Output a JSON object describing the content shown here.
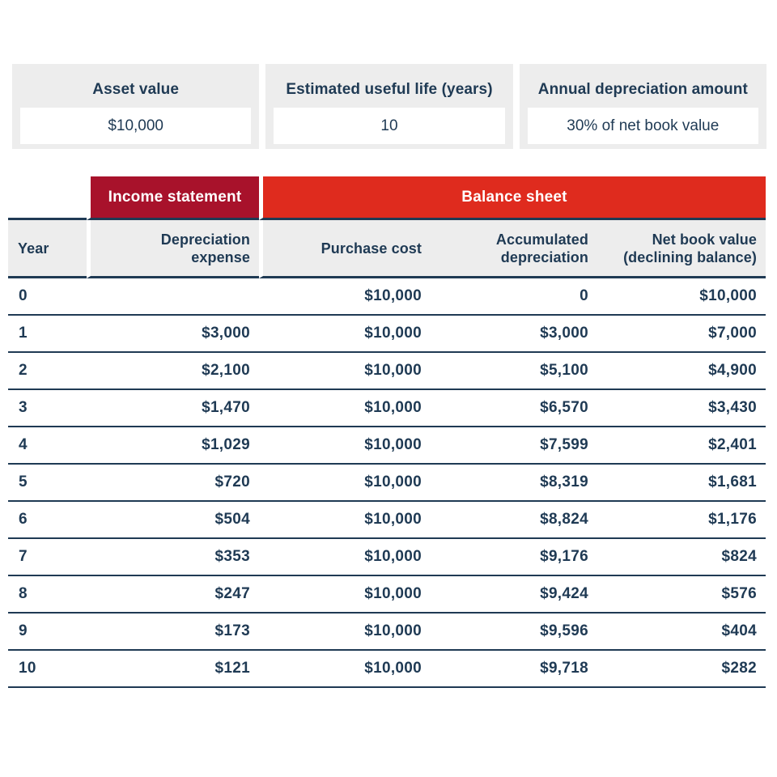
{
  "colors": {
    "text_navy": "#1F3A54",
    "line_navy": "#1F3A54",
    "panel_gray": "#EDEDED",
    "income_crimson": "#A8122B",
    "balance_red": "#DF2B1E",
    "white": "#FFFFFF"
  },
  "inputs": [
    {
      "label": "Asset value",
      "value": "$10,000"
    },
    {
      "label": "Estimated useful life (years)",
      "value": "10"
    },
    {
      "label": "Annual depreciation amount",
      "value": "30% of net book value"
    }
  ],
  "table": {
    "group_headers": [
      {
        "label": "Income statement"
      },
      {
        "label": "Balance sheet"
      }
    ],
    "columns": [
      "Year",
      "Depreciation expense",
      "Purchase cost",
      "Accumulated depreciation",
      "Net book value (declining balance)"
    ],
    "rows": [
      [
        "0",
        "",
        "$10,000",
        "0",
        "$10,000"
      ],
      [
        "1",
        "$3,000",
        "$10,000",
        "$3,000",
        "$7,000"
      ],
      [
        "2",
        "$2,100",
        "$10,000",
        "$5,100",
        "$4,900"
      ],
      [
        "3",
        "$1,470",
        "$10,000",
        "$6,570",
        "$3,430"
      ],
      [
        "4",
        "$1,029",
        "$10,000",
        "$7,599",
        "$2,401"
      ],
      [
        "5",
        "$720",
        "$10,000",
        "$8,319",
        "$1,681"
      ],
      [
        "6",
        "$504",
        "$10,000",
        "$8,824",
        "$1,176"
      ],
      [
        "7",
        "$353",
        "$10,000",
        "$9,176",
        "$824"
      ],
      [
        "8",
        "$247",
        "$10,000",
        "$9,424",
        "$576"
      ],
      [
        "9",
        "$173",
        "$10,000",
        "$9,596",
        "$404"
      ],
      [
        "10",
        "$121",
        "$10,000",
        "$9,718",
        "$282"
      ]
    ]
  },
  "chart_data": {
    "type": "table",
    "columns": [
      "Year",
      "Depreciation expense",
      "Purchase cost",
      "Accumulated depreciation",
      "Net book value (declining balance)"
    ],
    "column_groups": [
      {
        "label": "Income statement",
        "columns": [
          "Depreciation expense"
        ]
      },
      {
        "label": "Balance sheet",
        "columns": [
          "Purchase cost",
          "Accumulated depreciation",
          "Net book value (declining balance)"
        ]
      }
    ],
    "parameters": {
      "asset_value": 10000,
      "estimated_useful_life_years": 10,
      "annual_depreciation_rate_pct_of_net_book_value": 30
    },
    "rows": [
      [
        0,
        null,
        10000,
        0,
        10000
      ],
      [
        1,
        3000,
        10000,
        3000,
        7000
      ],
      [
        2,
        2100,
        10000,
        5100,
        4900
      ],
      [
        3,
        1470,
        10000,
        6570,
        3430
      ],
      [
        4,
        1029,
        10000,
        7599,
        2401
      ],
      [
        5,
        720,
        10000,
        8319,
        1681
      ],
      [
        6,
        504,
        10000,
        8824,
        1176
      ],
      [
        7,
        353,
        10000,
        9176,
        824
      ],
      [
        8,
        247,
        10000,
        9424,
        576
      ],
      [
        9,
        173,
        10000,
        9596,
        404
      ],
      [
        10,
        121,
        10000,
        9718,
        282
      ]
    ]
  }
}
